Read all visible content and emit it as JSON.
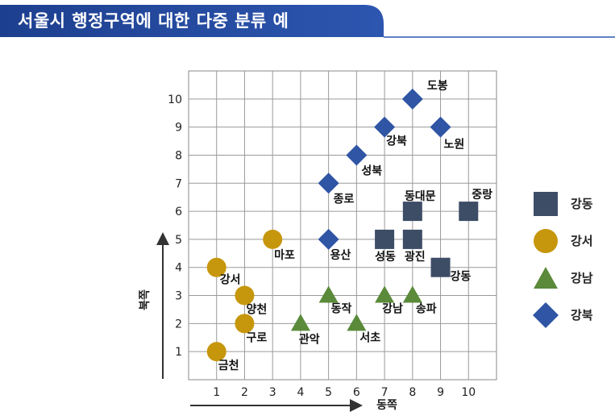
{
  "header": {
    "title": "서울시 행정구역에 대한 다중 분류 예"
  },
  "chart_data": {
    "type": "scatter",
    "title": "",
    "xlabel": "동쪽",
    "ylabel": "북쪽",
    "xlim": [
      0,
      11
    ],
    "ylim": [
      0,
      11
    ],
    "xticks": [
      "1",
      "2",
      "3",
      "4",
      "5",
      "6",
      "7",
      "8",
      "9",
      "10"
    ],
    "yticks": [
      "1",
      "2",
      "3",
      "4",
      "5",
      "6",
      "7",
      "8",
      "9",
      "10"
    ],
    "grid": true,
    "legend_placement": "right",
    "series": [
      {
        "name": "강동",
        "marker": "square",
        "color": "#3d4d66",
        "points": [
          {
            "x": 7,
            "y": 5,
            "label": "성동"
          },
          {
            "x": 8,
            "y": 5,
            "label": "광진"
          },
          {
            "x": 8,
            "y": 6,
            "label": "동대문"
          },
          {
            "x": 10,
            "y": 6,
            "label": "중랑"
          },
          {
            "x": 9,
            "y": 4,
            "label": "강동"
          }
        ]
      },
      {
        "name": "강서",
        "marker": "circle",
        "color": "#c6960c",
        "points": [
          {
            "x": 3,
            "y": 5,
            "label": "마포"
          },
          {
            "x": 1,
            "y": 4,
            "label": "강서"
          },
          {
            "x": 2,
            "y": 3,
            "label": "양천"
          },
          {
            "x": 2,
            "y": 2,
            "label": "구로"
          },
          {
            "x": 1,
            "y": 1,
            "label": "금천"
          }
        ]
      },
      {
        "name": "강남",
        "marker": "triangle",
        "color": "#5a8a3a",
        "points": [
          {
            "x": 5,
            "y": 3,
            "label": "동작"
          },
          {
            "x": 7,
            "y": 3,
            "label": "강남"
          },
          {
            "x": 8,
            "y": 3,
            "label": "송파"
          },
          {
            "x": 4,
            "y": 2,
            "label": "관악"
          },
          {
            "x": 6,
            "y": 2,
            "label": "서초"
          }
        ]
      },
      {
        "name": "강북",
        "marker": "diamond",
        "color": "#2f55a4",
        "points": [
          {
            "x": 8,
            "y": 10,
            "label": "도봉"
          },
          {
            "x": 7,
            "y": 9,
            "label": "강북"
          },
          {
            "x": 9,
            "y": 9,
            "label": "노원"
          },
          {
            "x": 6,
            "y": 8,
            "label": "성북"
          },
          {
            "x": 5,
            "y": 7,
            "label": "종로"
          },
          {
            "x": 5,
            "y": 5,
            "label": "용산"
          }
        ]
      }
    ]
  }
}
